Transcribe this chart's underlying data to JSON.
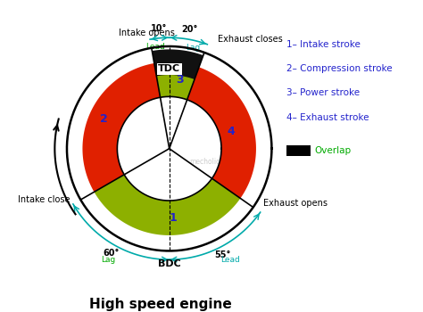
{
  "title": "High speed engine",
  "intake_open_before_tdc": 10,
  "exhaust_close_after_tdc": 20,
  "exhaust_open_before_bdc": 55,
  "intake_close_after_bdc": 60,
  "red_color": "#e02000",
  "green_color": "#8db000",
  "black_color": "#111111",
  "blue_text_color": "#2222cc",
  "cyan_color": "#00aaaa",
  "green_text_color": "#00aa00",
  "legend_labels": [
    "1– Intake stroke",
    "2– Compression stroke",
    "3– Power stroke",
    "4– Exhaust stroke"
  ],
  "overlap_label": "Overlap",
  "bg_color": "#ffffff",
  "watermark": "mecholic.com"
}
